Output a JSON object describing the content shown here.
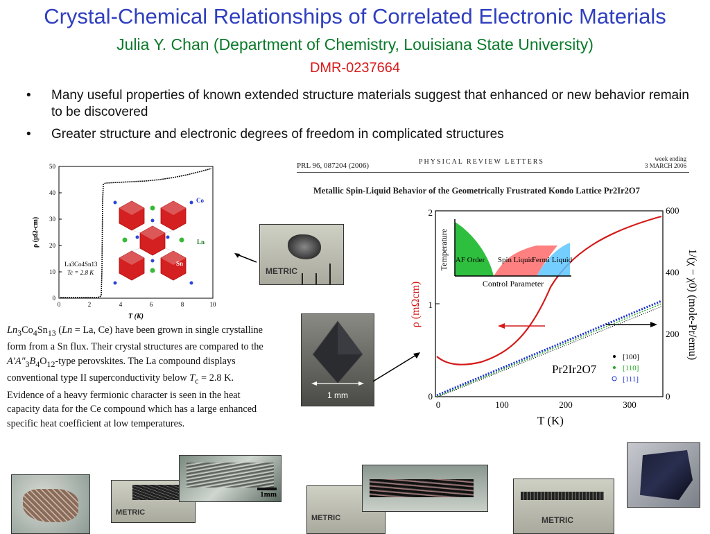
{
  "header": {
    "title": "Crystal-Chemical Relationships of Correlated Electronic Materials",
    "subtitle": "Julia Y. Chan (Department of Chemistry, Louisiana State University)",
    "grant": "DMR-0237664"
  },
  "bullets": [
    "Many useful properties of known extended structure materials suggest that enhanced or new behavior remain to be discovered",
    "Greater structure and electronic degrees of freedom in complicated structures"
  ],
  "bullet_glyph": "•",
  "left_chart": {
    "ylabel": "ρ (μΩ-cm)",
    "xlabel": "T (K)",
    "compound": "La3Co4Sn13",
    "tc_label": "Tc = 2.8 K",
    "atom_labels": [
      "Co",
      "Ln",
      "Sn"
    ],
    "xticks": [
      "0",
      "2",
      "4",
      "6",
      "8",
      "10"
    ],
    "yticks": [
      "0",
      "10",
      "20",
      "30",
      "40",
      "50"
    ],
    "colors": {
      "octahedra": "#d42020",
      "axis": "#000000"
    }
  },
  "description": {
    "part1": "(",
    "ln": "Ln",
    "part2": " = La, Ce) have been grown in single crystalline form from a Sn flux.  Their crystal structures are compared to the ",
    "part3": "-type perovskites.  The La compound displays conventional type II superconductivity below ",
    "tc": "T",
    "tc_sub": "c",
    "part4": " = 2.8 K.  Evidence of a heavy fermionic character is seen in the heat capacity data for the Ce compound which has a large enhanced specific heat coefficient at low temperatures."
  },
  "prl": {
    "journal_ref": "PRL 96, 087204 (2006)",
    "journal": "PHYSICAL   REVIEW   LETTERS",
    "week": "week ending",
    "date": "3 MARCH 2006",
    "article_title": "Metallic Spin-Liquid Behavior of the Geometrically Frustrated Kondo Lattice Pr2Ir2O7"
  },
  "right_chart": {
    "left_ylabel": "ρ (mΩcm)",
    "right_ylabel": "1/(χ − χ0) (mole-Pr/emu)",
    "xlabel": "T (K)",
    "left_yticks": [
      "0",
      "1",
      "2"
    ],
    "right_yticks": [
      "0",
      "200",
      "400",
      "600"
    ],
    "xticks": [
      "0",
      "100",
      "200",
      "300"
    ],
    "compound": "Pr2Ir2O7",
    "legend": [
      "[100]",
      "[110]",
      "[111]"
    ],
    "legend_colors": [
      "#000000",
      "#22aa22",
      "#1a2fd0"
    ],
    "curve_color": "#d41a1a",
    "inset": {
      "ylabel": "Temperature",
      "xlabel": "Control Parameter",
      "regions": [
        "AF Order",
        "Spin Liquid",
        "Fermi Liquid"
      ],
      "colors": [
        "#2fbf3f",
        "#ff4a4a",
        "#3bb7ff"
      ]
    }
  },
  "crystal_photo": {
    "scale": "1 mm"
  },
  "ruler_labels": [
    "METRIC",
    "METRIC",
    "METRIC",
    "METRIC"
  ],
  "bottom_scale": "1mm"
}
